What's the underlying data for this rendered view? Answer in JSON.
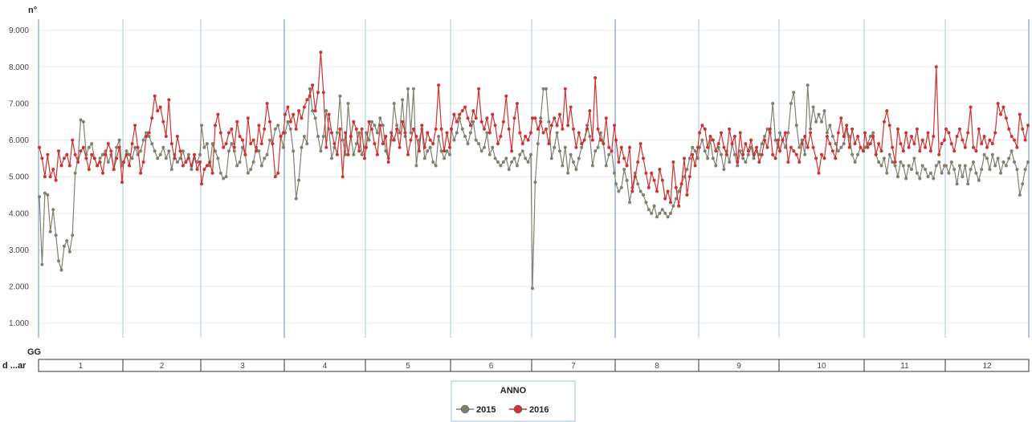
{
  "chart_data": {
    "type": "line",
    "ylabel": "n°",
    "xlabel": "",
    "x_header_label": "GG",
    "x_row_label": "d ...ar",
    "ylim": [
      600,
      9300
    ],
    "yticks": [
      1000,
      2000,
      3000,
      4000,
      5000,
      6000,
      7000,
      8000,
      9000
    ],
    "ytick_labels": [
      "1.000",
      "2.000",
      "3.000",
      "4.000",
      "5.000",
      "6.000",
      "7.000",
      "8.000",
      "9.000"
    ],
    "categories": [
      "1",
      "2",
      "3",
      "4",
      "5",
      "6",
      "7",
      "8",
      "9",
      "10",
      "11",
      "12"
    ],
    "days_per_month": [
      31,
      28,
      31,
      30,
      31,
      30,
      31,
      31,
      30,
      31,
      30,
      31
    ],
    "grid": true,
    "legend": {
      "title": "ANNO",
      "placement": "bottom-center"
    },
    "series": [
      {
        "name": "2015",
        "color": "#808070",
        "month_values": [
          [
            4450,
            2600,
            4550,
            4500,
            3500,
            4100,
            3400,
            2700,
            2450,
            3100,
            3250,
            2950,
            3400,
            5100,
            5500,
            6550,
            6500,
            5600,
            5800,
            5900,
            5500,
            5300,
            5500,
            5600,
            5700,
            5400,
            5600,
            5200,
            5800,
            6000,
            5300
          ],
          [
            5400,
            5700,
            5600,
            5500,
            5800,
            5600,
            5700,
            6000,
            6200,
            6100,
            5900,
            5700,
            5500,
            5600,
            5800,
            5500,
            5700,
            5200,
            5600,
            5400,
            5500,
            5700,
            5400,
            5600,
            5200,
            5500,
            5400,
            5600
          ],
          [
            6400,
            5800,
            5900,
            5300,
            5900,
            5700,
            5500,
            5100,
            4950,
            5000,
            5700,
            5900,
            5700,
            5300,
            5400,
            5800,
            5600,
            5100,
            5200,
            5400,
            5800,
            5700,
            5300,
            5500,
            5600,
            6000,
            5900,
            6300,
            6400,
            6100,
            5800
          ],
          [
            6200,
            6500,
            6300,
            5700,
            4400,
            4900,
            5800,
            6100,
            5900,
            7400,
            6800,
            6600,
            6100,
            5700,
            6100,
            6800,
            6300,
            5500,
            5800,
            6200,
            7200,
            6000,
            5600,
            7000,
            6100,
            5600,
            5900,
            6200,
            5600,
            5800
          ],
          [
            6200,
            6000,
            6500,
            6400,
            6200,
            6600,
            6400,
            5700,
            5500,
            6000,
            7000,
            6400,
            6200,
            7100,
            6100,
            7400,
            6200,
            7400,
            5300,
            6000,
            6300,
            5500,
            5700,
            5800,
            5400,
            5300,
            6100,
            5700,
            5500,
            5700,
            5600
          ],
          [
            6300,
            6000,
            6200,
            6600,
            6300,
            6100,
            5900,
            6200,
            6500,
            6000,
            5900,
            5700,
            5800,
            6200,
            5600,
            5800,
            5500,
            5400,
            5300,
            5400,
            5500,
            5200,
            5400,
            5500,
            5300,
            5600,
            5700,
            5500,
            5400,
            5600
          ],
          [
            1950,
            4850,
            5900,
            6600,
            7400,
            7400,
            6500,
            5500,
            5800,
            6200,
            5700,
            5300,
            5800,
            5100,
            5600,
            5400,
            5200,
            5500,
            5800,
            6000,
            6400,
            6100,
            5300,
            5700,
            5800,
            6200,
            5900,
            5300,
            5600,
            5700,
            5100
          ],
          [
            4800,
            4600,
            4700,
            5200,
            4900,
            4300,
            4700,
            5100,
            4800,
            4600,
            4500,
            4300,
            4100,
            4000,
            4200,
            3900,
            4000,
            4100,
            4000,
            3900,
            4000,
            4200,
            4400,
            4600,
            4800,
            5000,
            5200,
            5500,
            5800,
            5700,
            5500
          ],
          [
            5800,
            6000,
            5700,
            5500,
            6000,
            5500,
            5300,
            5800,
            5600,
            5200,
            5700,
            5400,
            5900,
            5600,
            5300,
            5700,
            5500,
            5400,
            5600,
            5800,
            5500,
            5700,
            5600,
            5900,
            6100,
            6300,
            6200,
            7000,
            6000,
            5800
          ],
          [
            6200,
            6000,
            5800,
            6200,
            7000,
            7300,
            6400,
            5800,
            6000,
            5600,
            7500,
            6300,
            6900,
            6500,
            6700,
            6500,
            6800,
            6200,
            6400,
            6100,
            5900,
            5700,
            5800,
            5900,
            6300,
            6100,
            5600,
            5400,
            5600,
            5800,
            5700
          ],
          [
            5800,
            5900,
            6100,
            6200,
            5600,
            5400,
            5300,
            5500,
            5100,
            5600,
            5400,
            5300,
            5000,
            5400,
            5300,
            4950,
            5300,
            5200,
            5500,
            5100,
            4950,
            5300,
            5200,
            5000,
            5100,
            4950,
            5300,
            5400,
            5100,
            5300
          ],
          [
            5300,
            5100,
            5400,
            5200,
            4800,
            5300,
            5000,
            5300,
            4800,
            5200,
            5400,
            5100,
            4900,
            5200,
            5600,
            5500,
            5200,
            5600,
            5300,
            5500,
            5100,
            5400,
            5300,
            5500,
            5700,
            5400,
            5200,
            4500,
            4800,
            5200,
            5400
          ]
        ]
      },
      {
        "name": "2016",
        "color": "#cc3333",
        "month_values": [
          [
            5800,
            5500,
            5000,
            5600,
            5000,
            5200,
            4900,
            5700,
            5300,
            5500,
            5600,
            5300,
            6000,
            5600,
            5400,
            5700,
            5800,
            5500,
            5200,
            5600,
            5500,
            5300,
            5400,
            5100,
            5600,
            5900,
            5700,
            5200,
            5500,
            5800,
            4850
          ],
          [
            5400,
            5600,
            5300,
            5900,
            6400,
            5800,
            5100,
            5400,
            6100,
            6200,
            6600,
            7200,
            6800,
            6900,
            6500,
            6100,
            7100,
            5900,
            5500,
            6100,
            5700,
            5300,
            5400,
            5500,
            5300,
            5600,
            5200,
            5400
          ],
          [
            4800,
            5200,
            5300,
            5400,
            5100,
            6400,
            6700,
            6200,
            5800,
            5900,
            6200,
            6300,
            5800,
            6500,
            6100,
            6000,
            5600,
            6600,
            5900,
            6000,
            5700,
            6400,
            5900,
            6300,
            7000,
            6500,
            5900,
            5000,
            5100,
            6100,
            6200
          ],
          [
            6700,
            6900,
            6500,
            6700,
            6300,
            6800,
            6600,
            6900,
            7100,
            7200,
            7500,
            6800,
            7300,
            8400,
            7300,
            5800,
            6700,
            6200,
            5900,
            5600,
            6300,
            5000,
            6200,
            5600,
            6100,
            6500,
            6300,
            5700,
            6300,
            5500
          ],
          [
            5800,
            6500,
            6300,
            5900,
            5600,
            6400,
            5900,
            6100,
            5400,
            6200,
            6000,
            6300,
            5800,
            6500,
            6200,
            5600,
            6000,
            6300,
            6100,
            5700,
            6400,
            5800,
            6200,
            6000,
            5900,
            6300,
            7500,
            6300,
            5700,
            6200,
            5800
          ],
          [
            6300,
            6700,
            6500,
            6700,
            6800,
            6900,
            6600,
            6400,
            6800,
            6600,
            7400,
            6500,
            6300,
            6600,
            6200,
            6700,
            6400,
            5900,
            6100,
            6500,
            7200,
            6300,
            5700,
            6600,
            7000,
            6200,
            5900,
            6100,
            6000,
            6200
          ],
          [
            6600,
            6600,
            6300,
            6500,
            6200,
            6300,
            5900,
            6400,
            6600,
            6400,
            6700,
            6300,
            7400,
            6400,
            6900,
            6300,
            5800,
            6200,
            5900,
            6000,
            6300,
            6800,
            6000,
            7700,
            6300,
            6000,
            5900,
            6600,
            5800,
            5700,
            6400
          ],
          [
            6000,
            5400,
            5800,
            5500,
            5300,
            5800,
            4600,
            5000,
            5400,
            5900,
            5500,
            5100,
            4700,
            5100,
            4900,
            4600,
            5200,
            4900,
            4400,
            4600,
            4300,
            5400,
            4700,
            4200,
            4800,
            5500,
            4500,
            5000,
            5600,
            5300,
            5800
          ],
          [
            6200,
            6400,
            6300,
            5800,
            6100,
            6000,
            5700,
            5900,
            6200,
            5800,
            5600,
            6300,
            5900,
            6100,
            5400,
            6200,
            5600,
            5900,
            5700,
            6000,
            5600,
            5800,
            5400,
            5600,
            6000,
            5800,
            6300,
            5600,
            5500,
            6000
          ],
          [
            5700,
            6000,
            6200,
            5400,
            5800,
            5700,
            5600,
            5400,
            5900,
            6100,
            5800,
            6200,
            5800,
            5500,
            5100,
            5600,
            5500,
            6100,
            5900,
            5700,
            5500,
            6200,
            6600,
            6100,
            6400,
            5800,
            6300,
            5900,
            6100,
            5800,
            5700
          ],
          [
            6200,
            5800,
            5900,
            6100,
            5600,
            5900,
            5700,
            6500,
            6800,
            6400,
            5800,
            5400,
            6300,
            5900,
            5700,
            6200,
            5800,
            6100,
            5900,
            6300,
            5700,
            6000,
            5800,
            6200,
            5700,
            6100,
            8000,
            5600,
            5900,
            6000
          ],
          [
            6300,
            6200,
            5900,
            5700,
            6100,
            6300,
            6000,
            5800,
            6200,
            6900,
            5800,
            5700,
            6300,
            5900,
            6100,
            5800,
            6000,
            5900,
            6200,
            7000,
            6700,
            6900,
            6600,
            6300,
            6100,
            6000,
            5800,
            6700,
            6300,
            6000,
            6400
          ]
        ]
      }
    ]
  }
}
